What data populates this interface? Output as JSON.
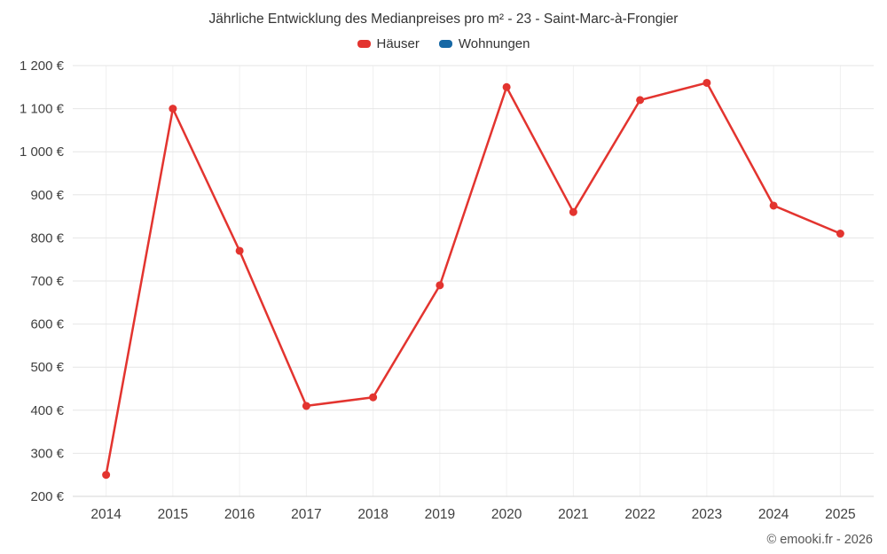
{
  "copyright": "© emooki.fr - 2026",
  "chart_data": {
    "type": "line",
    "title": "Jährliche Entwicklung des Medianpreises pro m² - 23 - Saint-Marc-à-Frongier",
    "categories": [
      "2014",
      "2015",
      "2016",
      "2017",
      "2018",
      "2019",
      "2020",
      "2021",
      "2022",
      "2023",
      "2024",
      "2025"
    ],
    "series": [
      {
        "name": "Häuser",
        "color": "#e3342f",
        "values": [
          250,
          1100,
          770,
          410,
          430,
          690,
          1150,
          860,
          1120,
          1160,
          875,
          810
        ]
      },
      {
        "name": "Wohnungen",
        "color": "#1668a5",
        "values": []
      }
    ],
    "ylim": [
      200,
      1200
    ],
    "ytick_step": 100,
    "ytick_labels": [
      "200 €",
      "300 €",
      "400 €",
      "500 €",
      "600 €",
      "700 €",
      "800 €",
      "900 €",
      "1 000 €",
      "1 100 €",
      "1 200 €"
    ],
    "xlabel": "",
    "ylabel": "",
    "grid": true,
    "legend_position": "top"
  }
}
